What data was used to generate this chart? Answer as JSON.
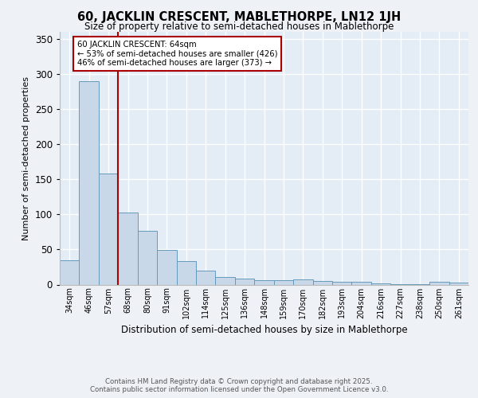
{
  "title_line1": "60, JACKLIN CRESCENT, MABLETHORPE, LN12 1JH",
  "title_line2": "Size of property relative to semi-detached houses in Mablethorpe",
  "xlabel": "Distribution of semi-detached houses by size in Mablethorpe",
  "ylabel": "Number of semi-detached properties",
  "categories": [
    "34sqm",
    "46sqm",
    "57sqm",
    "68sqm",
    "80sqm",
    "91sqm",
    "102sqm",
    "114sqm",
    "125sqm",
    "136sqm",
    "148sqm",
    "159sqm",
    "170sqm",
    "182sqm",
    "193sqm",
    "204sqm",
    "216sqm",
    "227sqm",
    "238sqm",
    "250sqm",
    "261sqm"
  ],
  "values": [
    35,
    290,
    158,
    103,
    77,
    49,
    33,
    20,
    11,
    8,
    6,
    6,
    7,
    5,
    4,
    4,
    2,
    1,
    1,
    4,
    3
  ],
  "bar_color": "#c8d8e8",
  "bar_edge_color": "#6699bb",
  "vline_x": 2.5,
  "vline_color": "#aa0000",
  "annotation_text": "60 JACKLIN CRESCENT: 64sqm\n← 53% of semi-detached houses are smaller (426)\n46% of semi-detached houses are larger (373) →",
  "annotation_box_color": "#ffffff",
  "annotation_box_edge": "#aa0000",
  "ylim": [
    0,
    360
  ],
  "yticks": [
    0,
    50,
    100,
    150,
    200,
    250,
    300,
    350
  ],
  "footer_text": "Contains HM Land Registry data © Crown copyright and database right 2025.\nContains public sector information licensed under the Open Government Licence v3.0.",
  "bg_color": "#eef2f7",
  "plot_bg_color": "#e4edf6"
}
